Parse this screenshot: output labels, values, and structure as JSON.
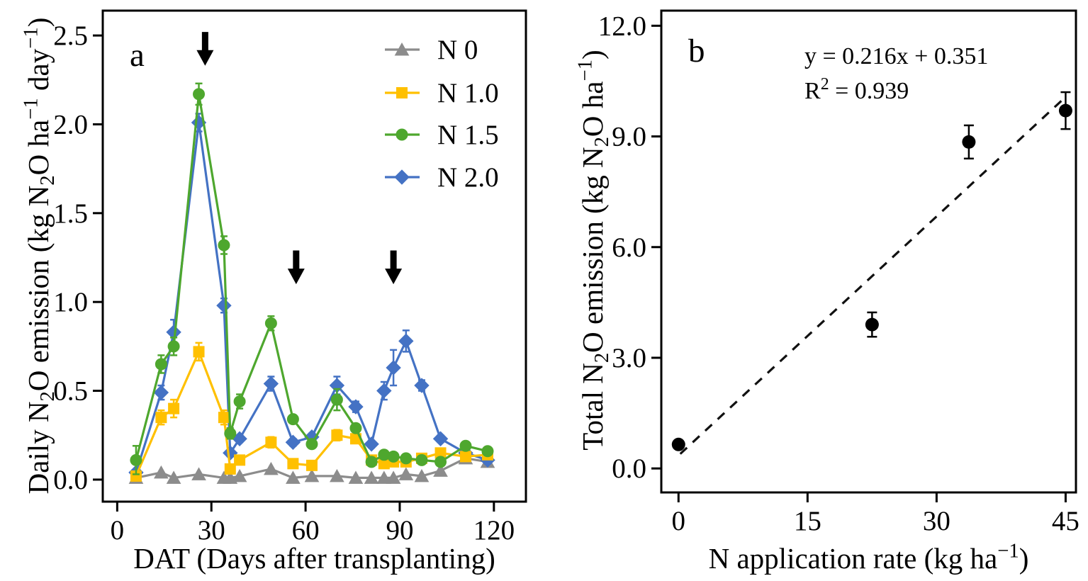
{
  "figure": {
    "background": "#ffffff",
    "axis_color": "#000000",
    "panel_a_label": "a",
    "panel_b_label": "b"
  },
  "chart_data": [
    {
      "id": "panel-a",
      "type": "line",
      "panel_label": "a",
      "xlabel": "DAT (Days after transplanting)",
      "ylabel_segments": [
        {
          "t": "Daily N"
        },
        {
          "t": "2",
          "s": "sub"
        },
        {
          "t": "O emission (kg N"
        },
        {
          "t": "2",
          "s": "sub"
        },
        {
          "t": "O ha"
        },
        {
          "t": "−1",
          "s": "sup"
        },
        {
          "t": " day"
        },
        {
          "t": "−1",
          "s": "sup"
        },
        {
          "t": ")"
        }
      ],
      "xlim": [
        -4.6,
        130.2
      ],
      "ylim": [
        -0.124,
        2.64
      ],
      "xticks": [
        {
          "v": 0,
          "label": "0"
        },
        {
          "v": 30,
          "label": "30"
        },
        {
          "v": 60,
          "label": "60"
        },
        {
          "v": 90,
          "label": "90"
        },
        {
          "v": 120,
          "label": "120"
        }
      ],
      "yticks": [
        {
          "v": 0,
          "label": "0.0"
        },
        {
          "v": 0.5,
          "label": "0.5"
        },
        {
          "v": 1,
          "label": "1.0"
        },
        {
          "v": 1.5,
          "label": "1.5"
        },
        {
          "v": 2,
          "label": "2.0"
        },
        {
          "v": 2.5,
          "label": "2.5"
        }
      ],
      "grid": false,
      "legend_position": "upper right",
      "fertilization_arrows": [
        {
          "x": 28,
          "y_top": 2.52,
          "y_tip": 2.33
        },
        {
          "x": 57,
          "y_top": 1.29,
          "y_tip": 1.1
        },
        {
          "x": 88,
          "y_top": 1.29,
          "y_tip": 1.1
        }
      ],
      "days": [
        6,
        14,
        18,
        26,
        34,
        36,
        39,
        49,
        56,
        62,
        70,
        76,
        81,
        85,
        88,
        92,
        97,
        103,
        111,
        118
      ],
      "series": [
        {
          "name": "N 0",
          "color": "#8C8C8C",
          "marker": "triangle",
          "values": [
            0.01,
            0.04,
            0.01,
            0.03,
            0.01,
            0.01,
            0.02,
            0.06,
            0.01,
            0.02,
            0.02,
            0.01,
            0.01,
            0.01,
            0.01,
            0.03,
            0.02,
            0.05,
            0.12,
            0.1
          ],
          "errors": [
            0,
            0,
            0,
            0,
            0,
            0,
            0,
            0,
            0,
            0,
            0,
            0,
            0,
            0,
            0,
            0,
            0,
            0,
            0,
            0
          ]
        },
        {
          "name": "N 1.0",
          "color": "#FFC000",
          "marker": "square",
          "values": [
            0.02,
            0.35,
            0.4,
            0.72,
            0.35,
            0.06,
            0.11,
            0.21,
            0.09,
            0.08,
            0.25,
            0.23,
            0.11,
            0.09,
            0.1,
            0.1,
            0.12,
            0.15,
            0.13,
            0.14
          ],
          "errors": [
            0,
            0.04,
            0.05,
            0.05,
            0.04,
            0.02,
            0.02,
            0.03,
            0.01,
            0.01,
            0.03,
            0.02,
            0.01,
            0.01,
            0.01,
            0.01,
            0.01,
            0.01,
            0.01,
            0.01
          ]
        },
        {
          "name": "N 1.5",
          "color": "#4EA72E",
          "marker": "circle",
          "values": [
            0.11,
            0.65,
            0.75,
            2.17,
            1.32,
            0.26,
            0.44,
            0.88,
            0.34,
            0.2,
            0.45,
            0.29,
            0.1,
            0.14,
            0.13,
            0.12,
            0.11,
            0.1,
            0.19,
            0.16
          ],
          "errors": [
            0.08,
            0.05,
            0.05,
            0.06,
            0.05,
            0.03,
            0.04,
            0.04,
            0.02,
            0.02,
            0.06,
            0.02,
            0.01,
            0.01,
            0.01,
            0.01,
            0.01,
            0.01,
            0.01,
            0.01
          ]
        },
        {
          "name": "N 2.0",
          "color": "#4472C4",
          "marker": "diamond",
          "values": [
            0.04,
            0.49,
            0.83,
            2.01,
            0.98,
            0.15,
            0.23,
            0.54,
            0.21,
            0.24,
            0.53,
            0.41,
            0.2,
            0.5,
            0.63,
            0.78,
            0.53,
            0.23,
            0.15,
            0.11
          ],
          "errors": [
            0.01,
            0.04,
            0.07,
            0.05,
            0.04,
            0.02,
            0.02,
            0.04,
            0.02,
            0.02,
            0.05,
            0.03,
            0.02,
            0.05,
            0.1,
            0.06,
            0.03,
            0.02,
            0.02,
            0.02
          ]
        }
      ]
    },
    {
      "id": "panel-b",
      "type": "scatter",
      "panel_label": "b",
      "xlabel_segments": [
        {
          "t": "N application rate (kg ha"
        },
        {
          "t": "−1",
          "s": "sup"
        },
        {
          "t": ")"
        }
      ],
      "ylabel_segments": [
        {
          "t": "Total N"
        },
        {
          "t": "2",
          "s": "sub"
        },
        {
          "t": "O emission (kg N"
        },
        {
          "t": "2",
          "s": "sub"
        },
        {
          "t": "O ha"
        },
        {
          "t": "−1",
          "s": "sup"
        },
        {
          "t": ")"
        }
      ],
      "equation": "y = 0.216x + 0.351",
      "r_squared_segments": [
        {
          "t": "R"
        },
        {
          "t": "2",
          "s": "sup"
        },
        {
          "t": " = 0.939"
        }
      ],
      "xlim": [
        -2.0,
        46.2
      ],
      "ylim": [
        -0.65,
        12.41
      ],
      "xticks": [
        {
          "v": 0,
          "label": "0"
        },
        {
          "v": 15,
          "label": "15"
        },
        {
          "v": 30,
          "label": "30"
        },
        {
          "v": 45,
          "label": "45"
        }
      ],
      "yticks": [
        {
          "v": 0,
          "label": "0.0"
        },
        {
          "v": 3,
          "label": "3.0"
        },
        {
          "v": 6,
          "label": "6.0"
        },
        {
          "v": 9,
          "label": "9.0"
        },
        {
          "v": 12,
          "label": "12.0"
        }
      ],
      "grid": false,
      "point_color": "#000000",
      "points": [
        {
          "x": 0,
          "y": 0.65,
          "err": 0.12
        },
        {
          "x": 22.5,
          "y": 3.9,
          "err": 0.33
        },
        {
          "x": 33.75,
          "y": 8.85,
          "err": 0.45
        },
        {
          "x": 45,
          "y": 9.7,
          "err": 0.5
        }
      ],
      "fit_line": {
        "slope": 0.216,
        "intercept": 0.351,
        "x_start": 0.2,
        "x_end": 45.0,
        "style": "dashed"
      }
    }
  ]
}
